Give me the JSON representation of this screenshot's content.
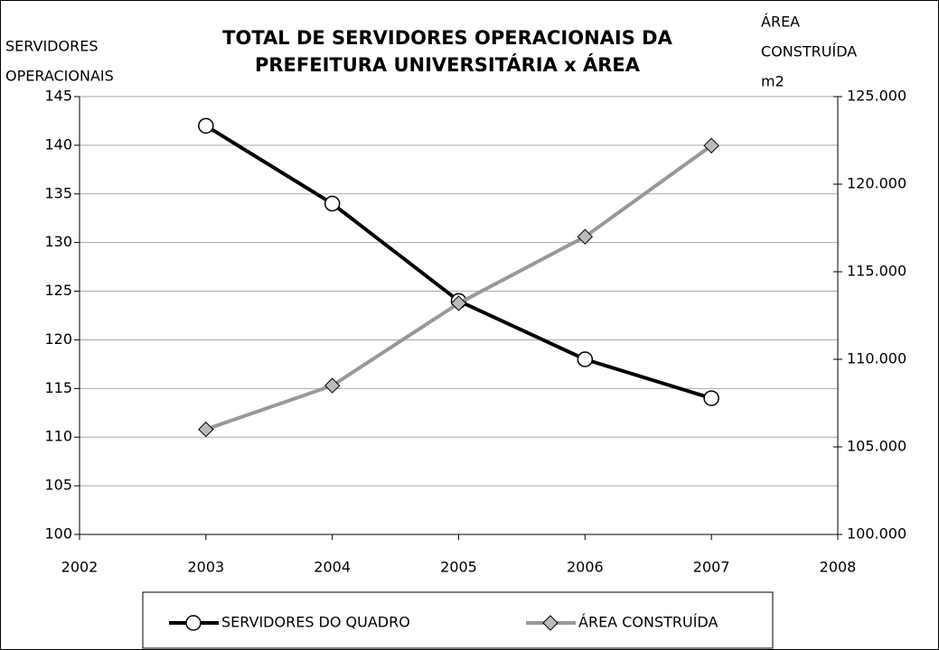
{
  "chart_data": {
    "type": "line",
    "title": [
      "TOTAL DE SERVIDORES OPERACIONAIS DA",
      "PREFEITURA UNIVERSITÁRIA x ÁREA"
    ],
    "y_label": [
      "SERVIDORES",
      "OPERACIONAIS"
    ],
    "y2_label": [
      "ÁREA",
      "CONSTRUÍDA",
      "m2"
    ],
    "x": [
      2003,
      2004,
      2005,
      2006,
      2007
    ],
    "xlim": [
      2002,
      2008
    ],
    "xticks": [
      2002,
      2003,
      2004,
      2005,
      2006,
      2007,
      2008
    ],
    "ylim": [
      100,
      145
    ],
    "yticks": [
      100,
      105,
      110,
      115,
      120,
      125,
      130,
      135,
      140,
      145
    ],
    "y2lim": [
      100000,
      125000
    ],
    "y2ticks": [
      {
        "value": 100000,
        "label": "100.000"
      },
      {
        "value": 105000,
        "label": "105.000"
      },
      {
        "value": 110000,
        "label": "110.000"
      },
      {
        "value": 115000,
        "label": "115.000"
      },
      {
        "value": 120000,
        "label": "120.000"
      },
      {
        "value": 125000,
        "label": "125.000"
      }
    ],
    "grid": true,
    "legend": "bottom",
    "series": [
      {
        "name": "SERVIDORES DO QUADRO",
        "color": "#000000",
        "marker": "circle",
        "values": [
          142,
          134,
          124,
          118,
          114
        ]
      },
      {
        "name": "ÁREA CONSTRUÍDA",
        "color": "#999999",
        "marker": "diamond",
        "axis": "y2",
        "values": [
          106000,
          108500,
          113200,
          117000,
          122200
        ]
      }
    ]
  }
}
